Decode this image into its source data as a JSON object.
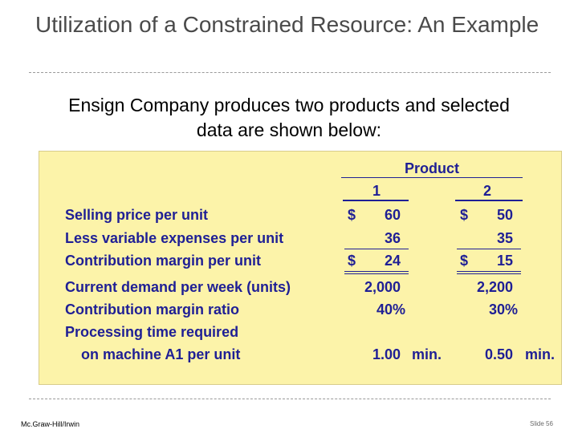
{
  "slide": {
    "title": "Utilization of a Constrained Resource: An Example",
    "intro": "Ensign Company produces two products and selected data are shown below:",
    "footer_left": "Mc.Graw-Hill/Irwin",
    "footer_right": "Slide 56"
  },
  "table": {
    "group_header": "Product",
    "columns": [
      "1",
      "2"
    ],
    "rows": {
      "selling_price": {
        "label": "Selling price per unit",
        "p1_sign": "$",
        "p1": "60",
        "p2_sign": "$",
        "p2": "50"
      },
      "variable_expenses": {
        "label": "Less variable expenses per unit",
        "p1": "36",
        "p2": "35"
      },
      "contribution_margin": {
        "label": "Contribution margin per unit",
        "p1_sign": "$",
        "p1": "24",
        "p2_sign": "$",
        "p2": "15"
      },
      "demand": {
        "label": "Current demand per week (units)",
        "p1": "2,000",
        "p2": "2,200"
      },
      "cm_ratio": {
        "label": "Contribution margin ratio",
        "p1": "40%",
        "p2": "30%"
      },
      "processing_label": "Processing time required",
      "processing": {
        "label": "on machine A1 per unit",
        "p1": "1.00",
        "p1_unit": "min.",
        "p2": "0.50",
        "p2_unit": "min."
      }
    }
  }
}
